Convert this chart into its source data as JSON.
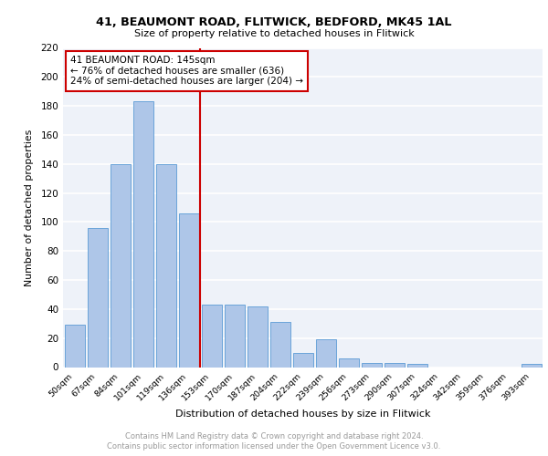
{
  "title1": "41, BEAUMONT ROAD, FLITWICK, BEDFORD, MK45 1AL",
  "title2": "Size of property relative to detached houses in Flitwick",
  "xlabel": "Distribution of detached houses by size in Flitwick",
  "ylabel": "Number of detached properties",
  "categories": [
    "50sqm",
    "67sqm",
    "84sqm",
    "101sqm",
    "119sqm",
    "136sqm",
    "153sqm",
    "170sqm",
    "187sqm",
    "204sqm",
    "222sqm",
    "239sqm",
    "256sqm",
    "273sqm",
    "290sqm",
    "307sqm",
    "324sqm",
    "342sqm",
    "359sqm",
    "376sqm",
    "393sqm"
  ],
  "values": [
    29,
    96,
    140,
    183,
    140,
    106,
    43,
    43,
    42,
    31,
    10,
    19,
    6,
    3,
    3,
    2,
    0,
    0,
    0,
    0,
    2
  ],
  "bar_color": "#aec6e8",
  "bar_edge_color": "#5b9bd5",
  "vline_color": "#cc0000",
  "annotation_title": "41 BEAUMONT ROAD: 145sqm",
  "annotation_line1": "← 76% of detached houses are smaller (636)",
  "annotation_line2": "24% of semi-detached houses are larger (204) →",
  "annotation_box_color": "#cc0000",
  "ylim": [
    0,
    220
  ],
  "yticks": [
    0,
    20,
    40,
    60,
    80,
    100,
    120,
    140,
    160,
    180,
    200,
    220
  ],
  "footer1": "Contains HM Land Registry data © Crown copyright and database right 2024.",
  "footer2": "Contains public sector information licensed under the Open Government Licence v3.0.",
  "plot_bg_color": "#eef2f9"
}
